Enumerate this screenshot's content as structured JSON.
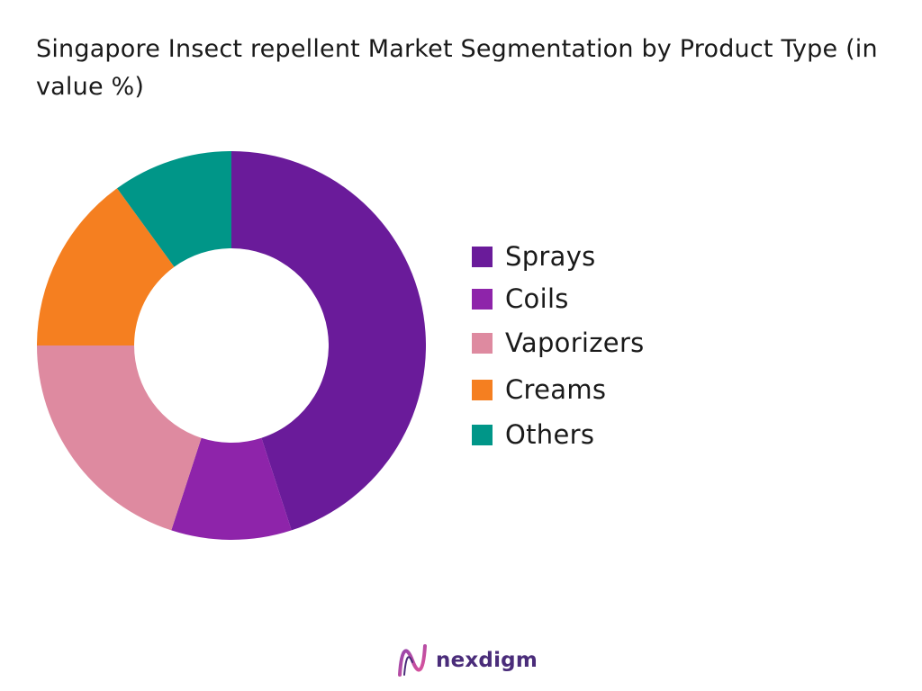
{
  "chart_data": {
    "type": "pie",
    "donut": true,
    "title": "Singapore Insect repellent Market  Segmentation by Product Type (in value %)",
    "categories": [
      "Sprays",
      "Coils",
      "Vaporizers",
      "Creams",
      "Others"
    ],
    "values": [
      45,
      10,
      20,
      15,
      10
    ],
    "colors": [
      "#6a1b9a",
      "#8e24aa",
      "#de8aa0",
      "#f57f20",
      "#009688"
    ],
    "legend_position": "right"
  },
  "brand": {
    "name": "nexdigm",
    "logo_icon": "nexdigm-wave-logo",
    "color": "#4a2c7a"
  }
}
